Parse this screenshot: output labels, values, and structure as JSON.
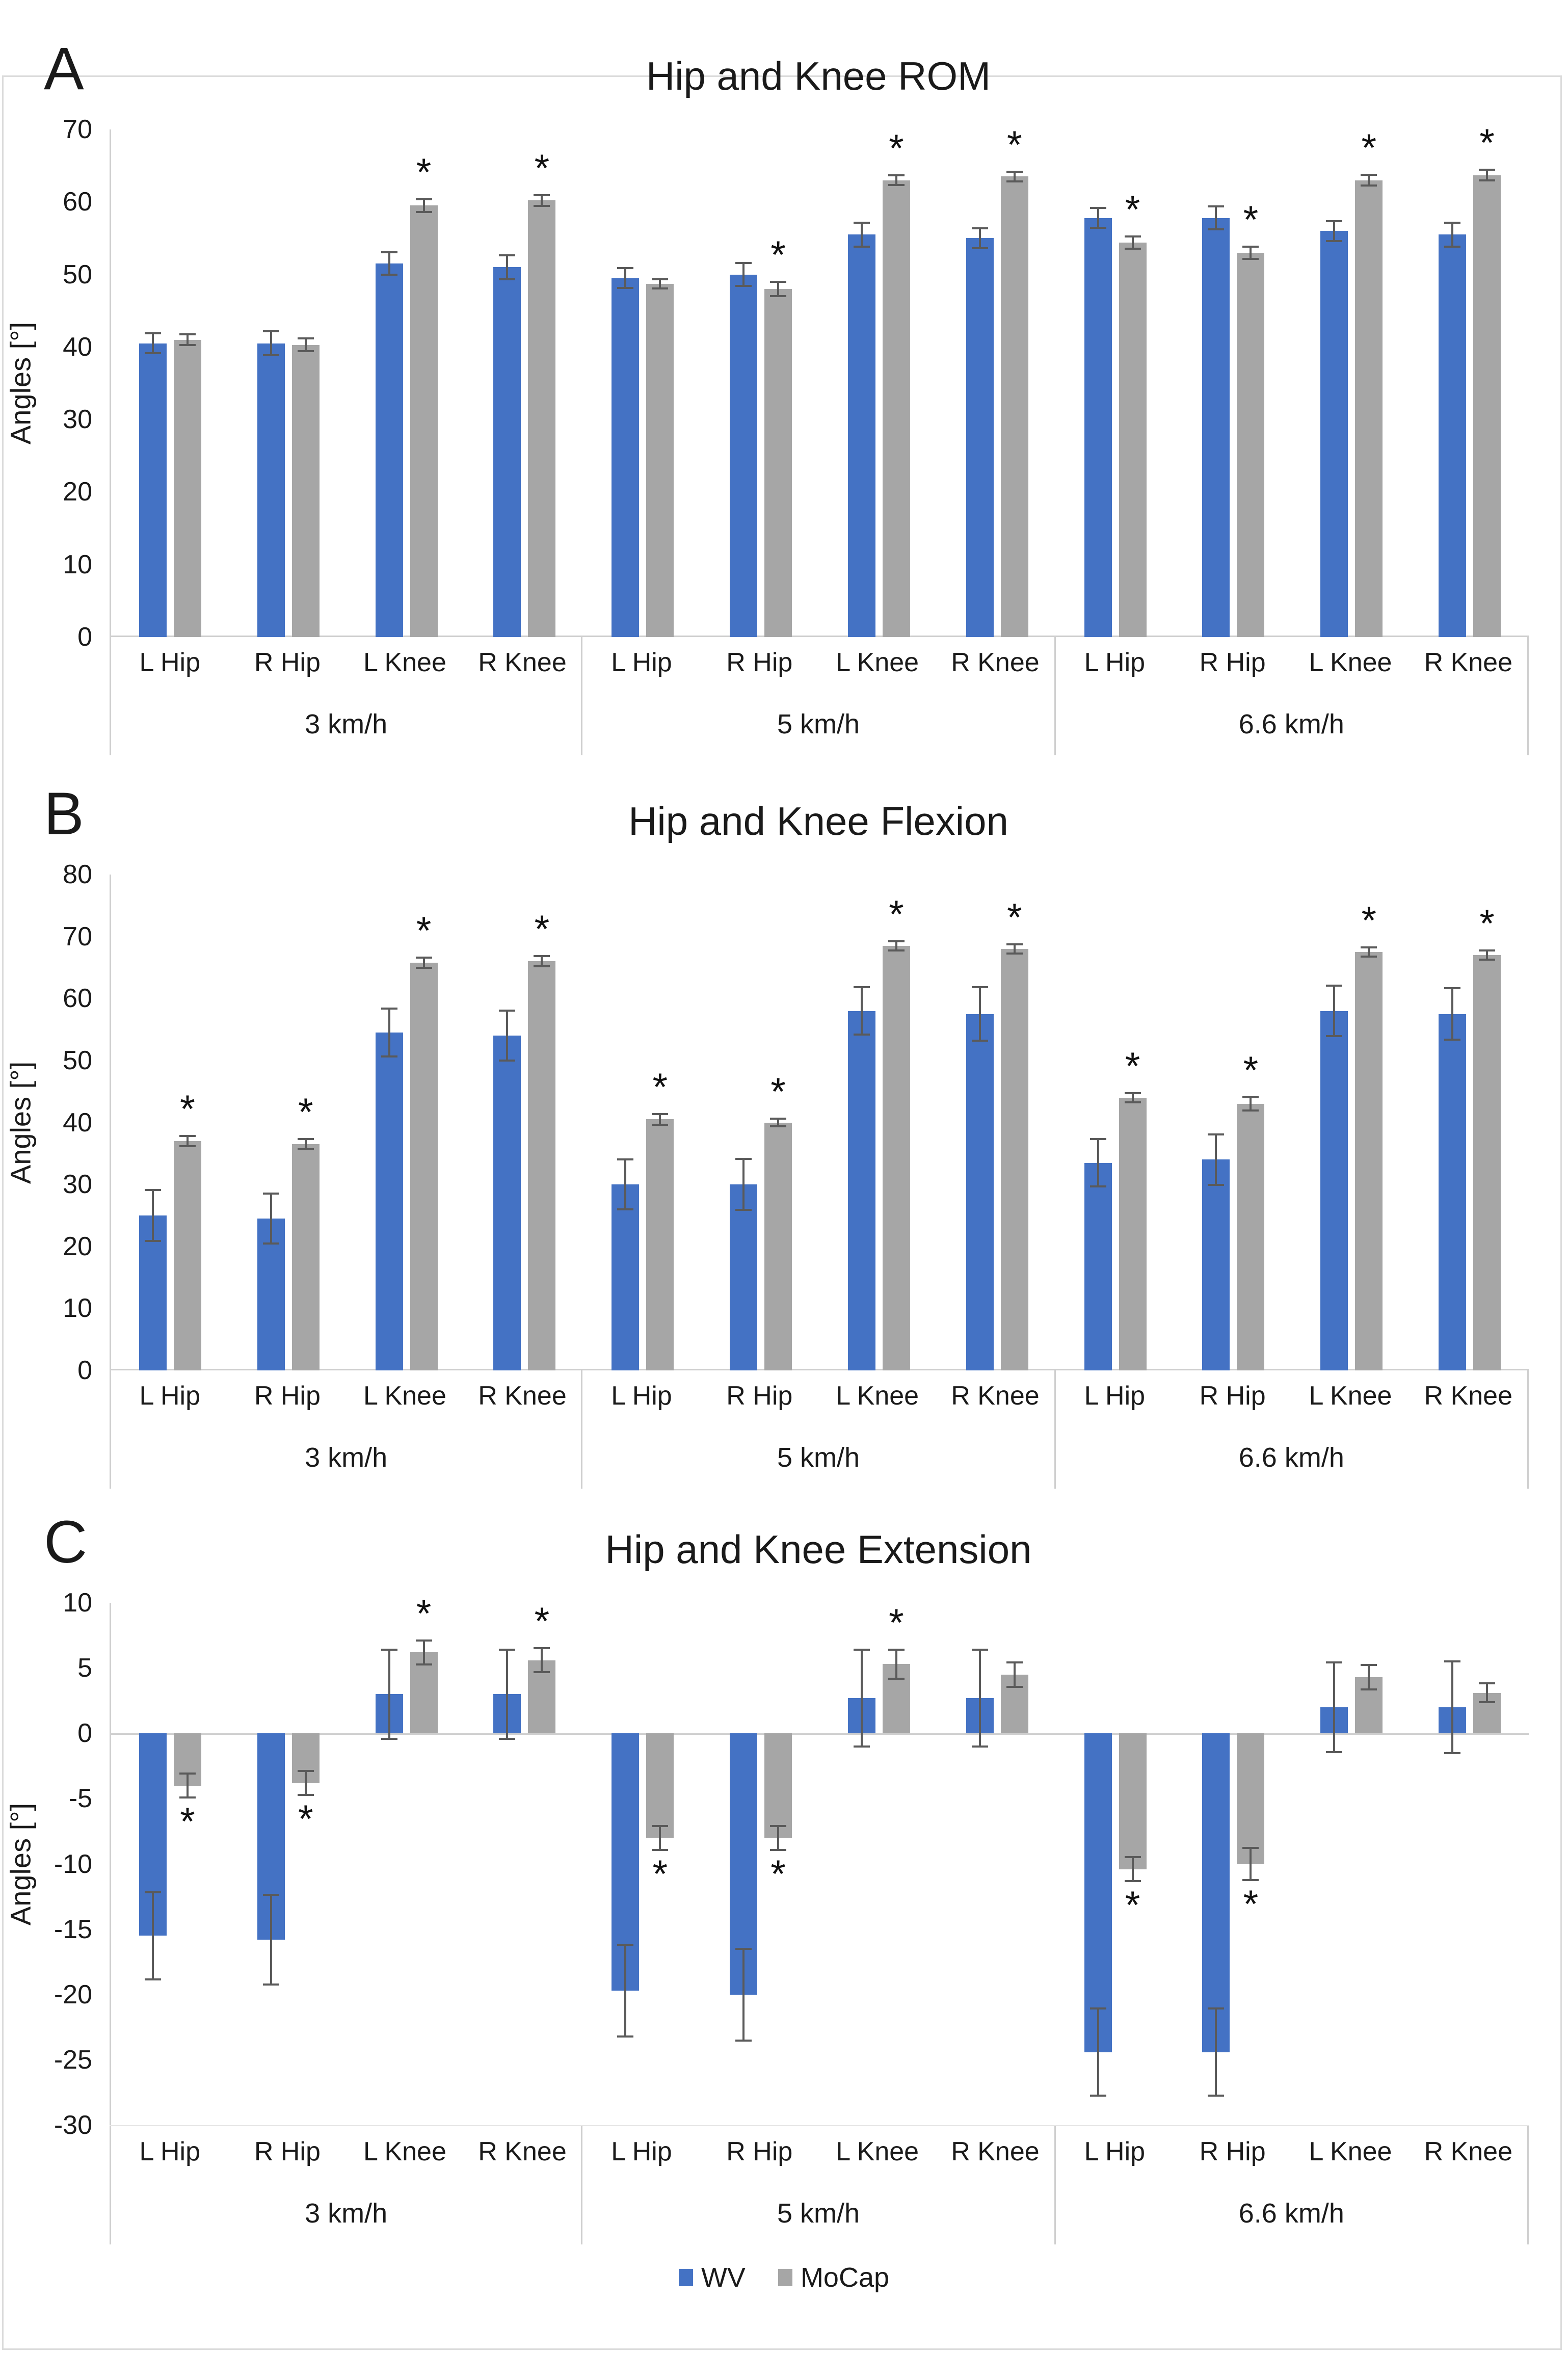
{
  "colors": {
    "wv": "#4472C4",
    "mocap": "#A6A6A6",
    "error_bar": "#5A5A5A",
    "axis_line": "#CFCFCF",
    "star": "#111111"
  },
  "legend": {
    "items": [
      {
        "label": "WV",
        "color": "#4472C4"
      },
      {
        "label": "MoCap",
        "color": "#A6A6A6"
      }
    ]
  },
  "chart_data": [
    {
      "panel": "A",
      "title": "Hip and Knee ROM",
      "type": "bar",
      "ylabel": "Angles [°]",
      "ylim": [
        0,
        70
      ],
      "yticks": [
        0,
        10,
        20,
        30,
        40,
        50,
        60,
        70
      ],
      "grid": false,
      "legend_position": "none",
      "series_names": [
        "WV",
        "MoCap"
      ],
      "groups": [
        {
          "label": "3 km/h",
          "categories": [
            "L Hip",
            "R Hip",
            "L Knee",
            "R Knee"
          ],
          "wv": [
            40.5,
            40.5,
            51.5,
            51.0
          ],
          "wv_err": [
            1.5,
            1.8,
            1.7,
            1.8
          ],
          "mocap": [
            41.0,
            40.3,
            59.5,
            60.2
          ],
          "mocap_err": [
            0.9,
            1.0,
            1.0,
            0.9
          ],
          "star_mocap": [
            false,
            false,
            true,
            true
          ]
        },
        {
          "label": "5 km/h",
          "categories": [
            "L Hip",
            "R Hip",
            "L Knee",
            "R Knee"
          ],
          "wv": [
            49.5,
            50.0,
            55.5,
            55.0
          ],
          "wv_err": [
            1.5,
            1.7,
            1.8,
            1.5
          ],
          "mocap": [
            48.7,
            48.0,
            63.0,
            63.5
          ],
          "mocap_err": [
            0.8,
            1.1,
            0.8,
            0.8
          ],
          "star_mocap": [
            false,
            true,
            true,
            true
          ]
        },
        {
          "label": "6.6 km/h",
          "categories": [
            "L Hip",
            "R Hip",
            "L Knee",
            "R Knee"
          ],
          "wv": [
            57.8,
            57.8,
            56.0,
            55.5
          ],
          "wv_err": [
            1.5,
            1.7,
            1.5,
            1.8
          ],
          "mocap": [
            54.4,
            53.0,
            63.0,
            63.7
          ],
          "mocap_err": [
            1.0,
            1.0,
            0.9,
            0.9
          ],
          "star_mocap": [
            true,
            true,
            true,
            true
          ]
        }
      ]
    },
    {
      "panel": "B",
      "title": "Hip and Knee Flexion",
      "type": "bar",
      "ylabel": "Angles [°]",
      "ylim": [
        0,
        80
      ],
      "yticks": [
        0,
        10,
        20,
        30,
        40,
        50,
        60,
        70,
        80
      ],
      "grid": false,
      "legend_position": "none",
      "series_names": [
        "WV",
        "MoCap"
      ],
      "groups": [
        {
          "label": "3 km/h",
          "categories": [
            "L Hip",
            "R Hip",
            "L Knee",
            "R Knee"
          ],
          "wv": [
            25.0,
            24.5,
            54.5,
            54.0
          ],
          "wv_err": [
            4.3,
            4.2,
            4.0,
            4.2
          ],
          "mocap": [
            37.0,
            36.5,
            65.8,
            66.0
          ],
          "mocap_err": [
            1.0,
            1.0,
            1.0,
            1.0
          ],
          "star_mocap": [
            true,
            true,
            true,
            true
          ]
        },
        {
          "label": "5 km/h",
          "categories": [
            "L Hip",
            "R Hip",
            "L Knee",
            "R Knee"
          ],
          "wv": [
            30.0,
            30.0,
            58.0,
            57.5
          ],
          "wv_err": [
            4.2,
            4.3,
            4.0,
            4.5
          ],
          "mocap": [
            40.5,
            40.0,
            68.5,
            68.0
          ],
          "mocap_err": [
            1.0,
            0.8,
            0.9,
            0.9
          ],
          "star_mocap": [
            true,
            true,
            true,
            true
          ]
        },
        {
          "label": "6.6 km/h",
          "categories": [
            "L Hip",
            "R Hip",
            "L Knee",
            "R Knee"
          ],
          "wv": [
            33.5,
            34.0,
            58.0,
            57.5
          ],
          "wv_err": [
            4.0,
            4.2,
            4.2,
            4.3
          ],
          "mocap": [
            44.0,
            43.0,
            67.5,
            67.0
          ],
          "mocap_err": [
            0.9,
            1.2,
            0.9,
            0.9
          ],
          "star_mocap": [
            true,
            true,
            true,
            true
          ]
        }
      ]
    },
    {
      "panel": "C",
      "title": "Hip and Knee Extension",
      "type": "bar",
      "ylabel": "Angles [°]",
      "ylim": [
        -30,
        10
      ],
      "yticks": [
        -30,
        -25,
        -20,
        -15,
        -10,
        -5,
        0,
        5,
        10
      ],
      "grid": false,
      "legend_position": "bottom",
      "series_names": [
        "WV",
        "MoCap"
      ],
      "groups": [
        {
          "label": "3 km/h",
          "categories": [
            "L Hip",
            "R Hip",
            "L Knee",
            "R Knee"
          ],
          "wv": [
            -15.5,
            -15.8,
            3.0,
            3.0
          ],
          "wv_err": [
            3.4,
            3.5,
            3.5,
            3.5
          ],
          "mocap": [
            -4.0,
            -3.8,
            6.2,
            5.6
          ],
          "mocap_err": [
            1.0,
            1.0,
            1.0,
            1.0
          ],
          "star_mocap": [
            true,
            true,
            true,
            true
          ]
        },
        {
          "label": "5 km/h",
          "categories": [
            "L Hip",
            "R Hip",
            "L Knee",
            "R Knee"
          ],
          "wv": [
            -19.7,
            -20.0,
            2.7,
            2.7
          ],
          "wv_err": [
            3.6,
            3.6,
            3.8,
            3.8
          ],
          "mocap": [
            -8.0,
            -8.0,
            5.3,
            4.5
          ],
          "mocap_err": [
            1.0,
            1.0,
            1.2,
            1.0
          ],
          "star_mocap": [
            true,
            true,
            true,
            false
          ]
        },
        {
          "label": "6.6 km/h",
          "categories": [
            "L Hip",
            "R Hip",
            "L Knee",
            "R Knee"
          ],
          "wv": [
            -24.4,
            -24.4,
            2.0,
            2.0
          ],
          "wv_err": [
            3.4,
            3.4,
            3.5,
            3.6
          ],
          "mocap": [
            -10.4,
            -10.0,
            4.3,
            3.1
          ],
          "mocap_err": [
            1.0,
            1.3,
            1.0,
            0.8
          ],
          "star_mocap": [
            true,
            true,
            false,
            false
          ]
        }
      ]
    }
  ]
}
